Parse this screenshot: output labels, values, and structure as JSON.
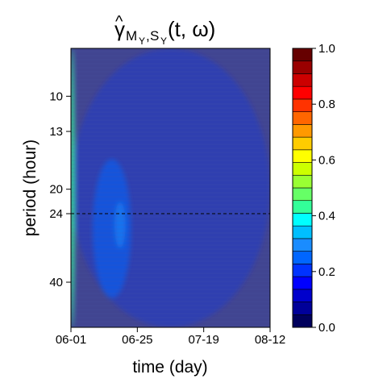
{
  "chart_data": {
    "type": "heatmap",
    "title": {
      "gamma": "γ",
      "hat": "^",
      "subscript_main": "M",
      "subscript_y1": "Y",
      "comma": ",",
      "subscript_s": "S",
      "subscript_y2": "Y",
      "args": "(t, ω)"
    },
    "xlabel": "time (day)",
    "ylabel": "period (hour)",
    "x_ticks": [
      "06-01",
      "06-25",
      "07-19",
      "08-12"
    ],
    "y_ticks": [
      "10",
      "13",
      "20",
      "24",
      "40"
    ],
    "y_tick_values": [
      10,
      13,
      20,
      24,
      40
    ],
    "y_scale": "log",
    "ylim": [
      7,
      56
    ],
    "reference_line_period": 24,
    "colorbar": {
      "ticks": [
        "0.0",
        "0.2",
        "0.4",
        "0.6",
        "0.8",
        "1.0"
      ],
      "range": [
        0,
        1
      ],
      "colors": [
        "#00005c",
        "#000099",
        "#0000cc",
        "#0000ff",
        "#0033ff",
        "#0066ff",
        "#1a8cff",
        "#00bfff",
        "#00ffff",
        "#33ff99",
        "#66ff66",
        "#99ff33",
        "#ccff00",
        "#ffff00",
        "#ffcc00",
        "#ff9900",
        "#ff6600",
        "#ff3300",
        "#ff0000",
        "#cc0000",
        "#990000",
        "#660000"
      ]
    },
    "background_level": 0.13,
    "regions": [
      {
        "level": 0.21,
        "day_from": 0,
        "day_to": 73,
        "period_from": 7,
        "period_to": 56,
        "note": "broad mid-blue band"
      },
      {
        "level": 0.25,
        "day_from": 8,
        "day_to": 22,
        "period_from": 16,
        "period_to": 45
      },
      {
        "level": 0.28,
        "day_from": 16,
        "day_to": 20,
        "period_from": 22,
        "period_to": 31
      },
      {
        "level": 0.45,
        "day_from": 0,
        "day_to": 1,
        "period_from": 7,
        "period_to": 56
      }
    ]
  }
}
